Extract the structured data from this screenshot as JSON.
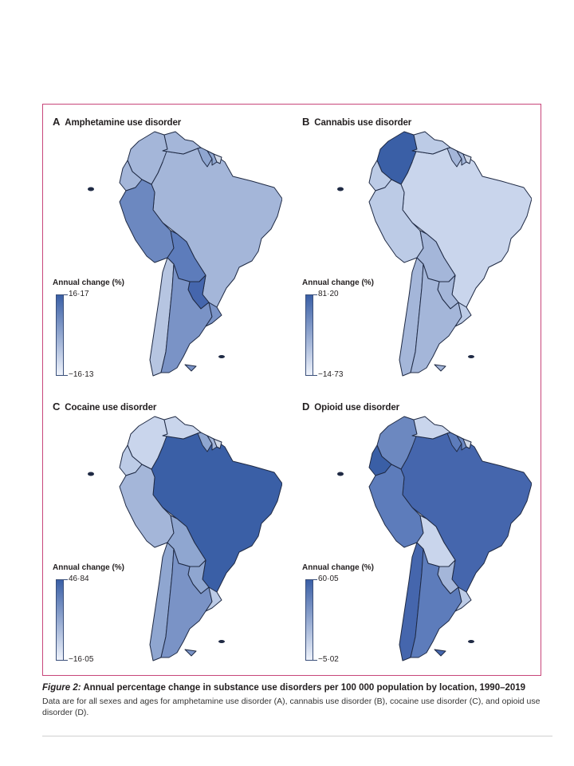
{
  "panels": [
    {
      "letter": "A",
      "title": "Amphetamine use disorder",
      "legend": {
        "title": "Annual change (%)",
        "max": "16·17",
        "min": "−16·13"
      },
      "colors": {
        "colombia": "#a4b6d9",
        "venezuela": "#a4b6d9",
        "guyana": "#8fa6d0",
        "suriname": "#8fa6d0",
        "fr_guiana": "#d0d8e6",
        "ecuador": "#a4b6d9",
        "peru": "#6c88c0",
        "brazil": "#a4b6d9",
        "bolivia": "#5d7cbb",
        "paraguay": "#4566ad",
        "chile": "#b6c5e1",
        "argentina": "#7a93c6",
        "uruguay": "#7a93c6",
        "islands": "#7a93c6"
      }
    },
    {
      "letter": "B",
      "title": "Cannabis use disorder",
      "legend": {
        "title": "Annual change (%)",
        "max": "81·20",
        "min": "−14·73"
      },
      "colors": {
        "colombia": "#3a5fa6",
        "venezuela": "#bccbe6",
        "guyana": "#a4b6d9",
        "suriname": "#a4b6d9",
        "fr_guiana": "#d0d8e6",
        "ecuador": "#bccbe6",
        "peru": "#bccbe6",
        "brazil": "#c9d5ec",
        "bolivia": "#a4b6d9",
        "paraguay": "#a4b6d9",
        "chile": "#a4b6d9",
        "argentina": "#a4b6d9",
        "uruguay": "#bccbe6",
        "islands": "#a4b6d9"
      }
    },
    {
      "letter": "C",
      "title": "Cocaine use disorder",
      "legend": {
        "title": "Annual change (%)",
        "max": "46·84",
        "min": "−16·05"
      },
      "colors": {
        "colombia": "#c9d5ec",
        "venezuela": "#c9d5ec",
        "guyana": "#8fa6d0",
        "suriname": "#a4b6d9",
        "fr_guiana": "#d0d8e6",
        "ecuador": "#bccbe6",
        "peru": "#a4b6d9",
        "brazil": "#3a5fa6",
        "bolivia": "#8fa6d0",
        "paraguay": "#8fa6d0",
        "chile": "#8fa6d0",
        "argentina": "#7a93c6",
        "uruguay": "#bccbe6",
        "islands": "#7a93c6"
      }
    },
    {
      "letter": "D",
      "title": "Opioid use disorder",
      "legend": {
        "title": "Annual change (%)",
        "max": "60·05",
        "min": "−5·02"
      },
      "colors": {
        "colombia": "#6c88c0",
        "venezuela": "#c9d5ec",
        "guyana": "#5d7cbb",
        "suriname": "#6c88c0",
        "fr_guiana": "#d0d8e6",
        "ecuador": "#3a5fa6",
        "peru": "#5d7cbb",
        "brazil": "#4566ad",
        "bolivia": "#c9d5ec",
        "paraguay": "#a4b6d9",
        "chile": "#4566ad",
        "argentina": "#5d7cbb",
        "uruguay": "#bccbe6",
        "islands": "#4566ad"
      }
    }
  ],
  "caption": {
    "figure_label": "Figure 2:",
    "title": " Annual percentage change in substance use disorders per 100 000 population by location, 1990–2019",
    "text": "Data are for all sexes and ages for amphetamine use disorder (A), cannabis use disorder (B), cocaine use disorder (C), and opioid use disorder (D)."
  }
}
